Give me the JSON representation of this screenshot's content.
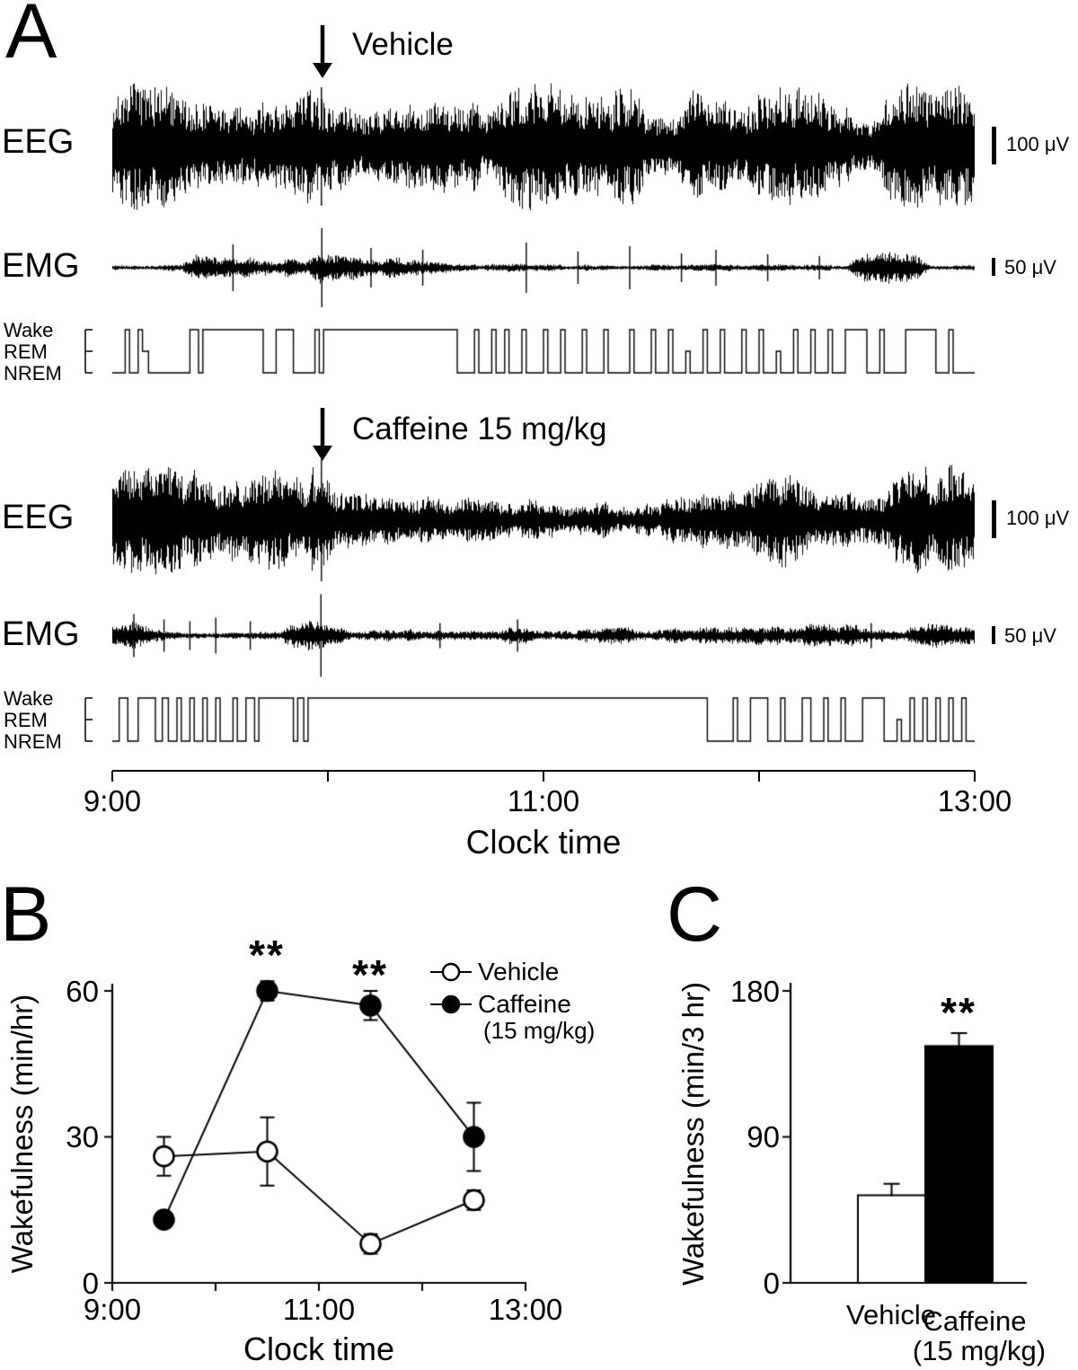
{
  "panel_a": {
    "label": "A",
    "vehicle": {
      "arrow_label": "Vehicle",
      "eeg_label": "EEG",
      "emg_label": "EMG",
      "eeg_scale": "100 μV",
      "emg_scale": "50 μV",
      "hypno": {
        "wake": "Wake",
        "rem": "REM",
        "nrem": "NREM"
      }
    },
    "caffeine": {
      "arrow_label": "Caffeine 15 mg/kg",
      "eeg_label": "EEG",
      "emg_label": "EMG",
      "eeg_scale": "100 μV",
      "emg_scale": "50 μV",
      "hypno": {
        "wake": "Wake",
        "rem": "REM",
        "nrem": "NREM"
      }
    },
    "time_axis": {
      "ticks": [
        "9:00",
        "11:00",
        "13:00"
      ],
      "label": "Clock time"
    }
  },
  "panel_b": {
    "label": "B",
    "ylabel": "Wakefulness (min/hr)",
    "xlabel": "Clock time",
    "yticks": [
      "60",
      "30",
      "0"
    ],
    "xticks": [
      "9:00",
      "11:00",
      "13:00"
    ],
    "legend": {
      "vehicle": "Vehicle",
      "caffeine": "Caffeine",
      "dose": "(15 mg/kg)"
    },
    "sig_a": "**",
    "sig_b": "**"
  },
  "panel_c": {
    "label": "C",
    "ylabel": "Wakefulness (min/3 hr)",
    "yticks": [
      "180",
      "90",
      "0"
    ],
    "cat_vehicle": "Vehicle",
    "cat_caffeine": "Caffeine",
    "cat_caffeine_dose": "(15 mg/kg)",
    "sig": "**"
  },
  "chart_data": [
    {
      "type": "line",
      "panel": "B",
      "xlabel": "Clock time",
      "ylabel": "Wakefulness (min/hr)",
      "xlim": [
        9,
        13
      ],
      "ylim": [
        0,
        60
      ],
      "y_ticks": [
        0,
        30,
        60
      ],
      "x_tick_labels": [
        "9:00",
        "11:00",
        "13:00"
      ],
      "x_hours": [
        9.5,
        10.5,
        11.5,
        12.5
      ],
      "series": [
        {
          "name": "Vehicle",
          "marker": "open-circle",
          "values": [
            26,
            27,
            8,
            17
          ],
          "errors": [
            4,
            7,
            2,
            2
          ]
        },
        {
          "name": "Caffeine (15 mg/kg)",
          "marker": "filled-circle",
          "values": [
            13,
            60,
            57,
            30
          ],
          "errors": [
            0,
            2,
            3,
            7
          ]
        }
      ],
      "significance": [
        {
          "series": "Caffeine (15 mg/kg)",
          "point_index": 1,
          "label": "**"
        },
        {
          "series": "Caffeine (15 mg/kg)",
          "point_index": 2,
          "label": "**"
        }
      ],
      "legend_position": "upper right"
    },
    {
      "type": "bar",
      "panel": "C",
      "ylabel": "Wakefulness (min/3 hr)",
      "ylim": [
        0,
        180
      ],
      "y_ticks": [
        0,
        90,
        180
      ],
      "categories": [
        "Vehicle",
        "Caffeine (15 mg/kg)"
      ],
      "values": [
        54,
        146
      ],
      "errors": [
        7,
        8
      ],
      "bar_colors": [
        "#ffffff",
        "#000000"
      ],
      "significance": [
        {
          "category": "Caffeine (15 mg/kg)",
          "label": "**"
        }
      ]
    }
  ],
  "traces": {
    "t-veh-eeg": {
      "seed": 7,
      "envelope": [
        [
          0,
          58
        ],
        [
          0.05,
          63
        ],
        [
          0.09,
          44
        ],
        [
          0.13,
          40
        ],
        [
          0.17,
          58
        ],
        [
          0.21,
          48
        ],
        [
          0.235,
          63
        ],
        [
          0.26,
          42
        ],
        [
          0.3,
          36
        ],
        [
          0.36,
          42
        ],
        [
          0.42,
          58
        ],
        [
          0.5,
          62
        ],
        [
          0.56,
          55
        ],
        [
          0.63,
          62
        ],
        [
          0.7,
          57
        ],
        [
          0.78,
          62
        ],
        [
          0.85,
          54
        ],
        [
          0.92,
          61
        ],
        [
          1,
          58
        ]
      ],
      "spikes": [
        [
          0.2425,
          66
        ]
      ]
    },
    "t-veh-emg": {
      "seed": 13,
      "envelope": [
        [
          0,
          3.5
        ],
        [
          0.08,
          3.5
        ],
        [
          0.1,
          15
        ],
        [
          0.13,
          19
        ],
        [
          0.17,
          14
        ],
        [
          0.19,
          6
        ],
        [
          0.21,
          13
        ],
        [
          0.225,
          7
        ],
        [
          0.24,
          15
        ],
        [
          0.28,
          12
        ],
        [
          0.33,
          10
        ],
        [
          0.4,
          8
        ],
        [
          0.44,
          4
        ],
        [
          0.6,
          3.5
        ],
        [
          0.75,
          3.5
        ],
        [
          0.85,
          4
        ],
        [
          0.87,
          13
        ],
        [
          0.9,
          16
        ],
        [
          0.93,
          13
        ],
        [
          0.95,
          4
        ],
        [
          1,
          3.5
        ]
      ],
      "spikes": [
        [
          0.243,
          44
        ],
        [
          0.14,
          26
        ],
        [
          0.3,
          22
        ],
        [
          0.36,
          20
        ],
        [
          0.48,
          28
        ],
        [
          0.54,
          18
        ],
        [
          0.6,
          24
        ],
        [
          0.66,
          16
        ],
        [
          0.7,
          20
        ],
        [
          0.76,
          15
        ],
        [
          0.82,
          13
        ]
      ]
    },
    "t-caf-eeg": {
      "seed": 21,
      "envelope": [
        [
          0,
          55
        ],
        [
          0.04,
          60
        ],
        [
          0.09,
          50
        ],
        [
          0.14,
          58
        ],
        [
          0.19,
          60
        ],
        [
          0.23,
          62
        ],
        [
          0.26,
          28
        ],
        [
          0.32,
          23
        ],
        [
          0.42,
          22
        ],
        [
          0.52,
          24
        ],
        [
          0.62,
          22
        ],
        [
          0.68,
          26
        ],
        [
          0.73,
          32
        ],
        [
          0.77,
          45
        ],
        [
          0.81,
          48
        ],
        [
          0.85,
          34
        ],
        [
          0.89,
          30
        ],
        [
          0.93,
          52
        ],
        [
          1,
          52
        ]
      ],
      "spikes": [
        [
          0.2425,
          68
        ]
      ]
    },
    "t-caf-emg": {
      "seed": 33,
      "envelope": [
        [
          0,
          11
        ],
        [
          0.02,
          14
        ],
        [
          0.05,
          6
        ],
        [
          0.1,
          4.5
        ],
        [
          0.15,
          4.5
        ],
        [
          0.195,
          5
        ],
        [
          0.21,
          13
        ],
        [
          0.235,
          15
        ],
        [
          0.26,
          8
        ],
        [
          0.35,
          8
        ],
        [
          0.45,
          9
        ],
        [
          0.55,
          8
        ],
        [
          0.65,
          9
        ],
        [
          0.72,
          8
        ],
        [
          0.78,
          10
        ],
        [
          0.84,
          12
        ],
        [
          0.9,
          10
        ],
        [
          0.95,
          12
        ],
        [
          1,
          9
        ]
      ],
      "spikes": [
        [
          0.242,
          46
        ],
        [
          0.025,
          24
        ],
        [
          0.06,
          18
        ],
        [
          0.09,
          16
        ],
        [
          0.12,
          20
        ],
        [
          0.16,
          16
        ],
        [
          0.38,
          14
        ],
        [
          0.47,
          18
        ],
        [
          0.88,
          14
        ]
      ]
    }
  },
  "hypnograms": {
    "vehicle": [
      [
        0,
        0.015,
        2
      ],
      [
        0.015,
        0.02,
        0
      ],
      [
        0.02,
        0.03,
        2
      ],
      [
        0.03,
        0.035,
        0
      ],
      [
        0.035,
        0.042,
        1
      ],
      [
        0.042,
        0.09,
        2
      ],
      [
        0.09,
        0.1,
        0
      ],
      [
        0.1,
        0.105,
        2
      ],
      [
        0.105,
        0.175,
        0
      ],
      [
        0.175,
        0.19,
        2
      ],
      [
        0.19,
        0.21,
        0
      ],
      [
        0.21,
        0.235,
        2
      ],
      [
        0.235,
        0.24,
        0
      ],
      [
        0.24,
        0.245,
        2
      ],
      [
        0.245,
        0.4,
        0
      ],
      [
        0.4,
        0.42,
        2
      ],
      [
        0.42,
        0.425,
        0
      ],
      [
        0.425,
        0.44,
        2
      ],
      [
        0.44,
        0.445,
        0
      ],
      [
        0.445,
        0.455,
        2
      ],
      [
        0.455,
        0.46,
        0
      ],
      [
        0.46,
        0.475,
        2
      ],
      [
        0.475,
        0.48,
        0
      ],
      [
        0.48,
        0.5,
        2
      ],
      [
        0.5,
        0.505,
        0
      ],
      [
        0.505,
        0.52,
        2
      ],
      [
        0.52,
        0.525,
        0
      ],
      [
        0.525,
        0.545,
        2
      ],
      [
        0.545,
        0.55,
        0
      ],
      [
        0.55,
        0.57,
        2
      ],
      [
        0.57,
        0.575,
        0
      ],
      [
        0.575,
        0.6,
        2
      ],
      [
        0.6,
        0.605,
        0
      ],
      [
        0.605,
        0.625,
        2
      ],
      [
        0.625,
        0.63,
        0
      ],
      [
        0.63,
        0.645,
        2
      ],
      [
        0.645,
        0.65,
        0
      ],
      [
        0.65,
        0.665,
        2
      ],
      [
        0.665,
        0.67,
        1
      ],
      [
        0.67,
        0.685,
        2
      ],
      [
        0.685,
        0.69,
        0
      ],
      [
        0.69,
        0.705,
        2
      ],
      [
        0.705,
        0.71,
        0
      ],
      [
        0.71,
        0.73,
        2
      ],
      [
        0.73,
        0.735,
        0
      ],
      [
        0.735,
        0.75,
        2
      ],
      [
        0.75,
        0.755,
        0
      ],
      [
        0.755,
        0.77,
        2
      ],
      [
        0.77,
        0.775,
        1
      ],
      [
        0.775,
        0.79,
        2
      ],
      [
        0.79,
        0.795,
        0
      ],
      [
        0.795,
        0.81,
        2
      ],
      [
        0.81,
        0.815,
        0
      ],
      [
        0.815,
        0.83,
        2
      ],
      [
        0.83,
        0.835,
        0
      ],
      [
        0.835,
        0.85,
        2
      ],
      [
        0.85,
        0.875,
        0
      ],
      [
        0.875,
        0.89,
        2
      ],
      [
        0.89,
        0.895,
        0
      ],
      [
        0.895,
        0.92,
        2
      ],
      [
        0.92,
        0.955,
        0
      ],
      [
        0.955,
        0.97,
        2
      ],
      [
        0.97,
        0.975,
        0
      ],
      [
        0.975,
        1,
        2
      ]
    ],
    "caffeine": [
      [
        0,
        0.008,
        2
      ],
      [
        0.008,
        0.018,
        0
      ],
      [
        0.018,
        0.03,
        2
      ],
      [
        0.03,
        0.05,
        0
      ],
      [
        0.05,
        0.058,
        2
      ],
      [
        0.058,
        0.065,
        0
      ],
      [
        0.065,
        0.075,
        2
      ],
      [
        0.075,
        0.08,
        0
      ],
      [
        0.08,
        0.09,
        2
      ],
      [
        0.09,
        0.095,
        0
      ],
      [
        0.095,
        0.105,
        2
      ],
      [
        0.105,
        0.11,
        0
      ],
      [
        0.11,
        0.12,
        2
      ],
      [
        0.12,
        0.125,
        0
      ],
      [
        0.125,
        0.14,
        2
      ],
      [
        0.14,
        0.145,
        0
      ],
      [
        0.145,
        0.155,
        2
      ],
      [
        0.155,
        0.165,
        0
      ],
      [
        0.165,
        0.17,
        2
      ],
      [
        0.17,
        0.21,
        0
      ],
      [
        0.21,
        0.215,
        2
      ],
      [
        0.215,
        0.222,
        0
      ],
      [
        0.222,
        0.227,
        2
      ],
      [
        0.227,
        0.69,
        0
      ],
      [
        0.69,
        0.72,
        2
      ],
      [
        0.72,
        0.725,
        0
      ],
      [
        0.725,
        0.74,
        2
      ],
      [
        0.74,
        0.76,
        0
      ],
      [
        0.76,
        0.775,
        2
      ],
      [
        0.775,
        0.78,
        0
      ],
      [
        0.78,
        0.8,
        2
      ],
      [
        0.8,
        0.81,
        0
      ],
      [
        0.81,
        0.825,
        2
      ],
      [
        0.825,
        0.83,
        0
      ],
      [
        0.83,
        0.845,
        2
      ],
      [
        0.845,
        0.85,
        0
      ],
      [
        0.85,
        0.87,
        2
      ],
      [
        0.87,
        0.895,
        0
      ],
      [
        0.895,
        0.91,
        2
      ],
      [
        0.91,
        0.915,
        1
      ],
      [
        0.915,
        0.925,
        2
      ],
      [
        0.925,
        0.93,
        0
      ],
      [
        0.93,
        0.94,
        2
      ],
      [
        0.94,
        0.945,
        0
      ],
      [
        0.945,
        0.955,
        2
      ],
      [
        0.955,
        0.96,
        0
      ],
      [
        0.96,
        0.97,
        2
      ],
      [
        0.97,
        0.975,
        0
      ],
      [
        0.975,
        0.985,
        2
      ],
      [
        0.985,
        0.99,
        0
      ],
      [
        0.99,
        1,
        2
      ]
    ]
  }
}
